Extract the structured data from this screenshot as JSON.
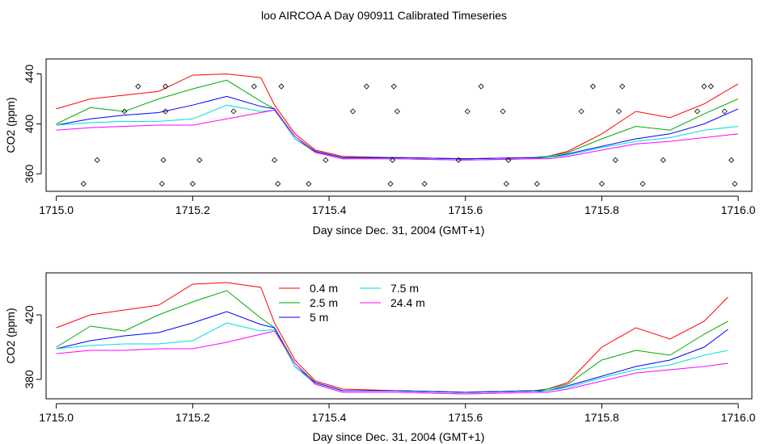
{
  "figure_title": "loo AIRCOA A  Day 090911  Calibrated Timeseries",
  "chart_data": [
    {
      "type": "line",
      "xlabel": "Day since Dec. 31, 2004 (GMT+1)",
      "ylabel": "CO2 (ppm)",
      "xlim": [
        1714.985,
        1716.02
      ],
      "ylim": [
        346,
        452
      ],
      "x_ticks": [
        1715.0,
        1715.2,
        1715.4,
        1715.6,
        1715.8,
        1716.0
      ],
      "x_tick_labels": [
        "1715.0",
        "1715.2",
        "1715.4",
        "1715.6",
        "1715.8",
        "1716.0"
      ],
      "y_ticks": [
        360,
        400,
        440
      ],
      "y_tick_labels": [
        "360",
        "400",
        "440"
      ],
      "grid": false,
      "legend": null,
      "series": [
        {
          "color": "#ff0000",
          "x": [
            1715.0,
            1715.05,
            1715.1,
            1715.15,
            1715.2,
            1715.25,
            1715.3,
            1715.32,
            1715.35,
            1715.38,
            1715.42,
            1715.5,
            1715.6,
            1715.7,
            1715.72,
            1715.75,
            1715.8,
            1715.85,
            1715.9,
            1715.95,
            1716.0
          ],
          "y": [
            412,
            420,
            423,
            426,
            439,
            440,
            437,
            415,
            392,
            379,
            374,
            373,
            372,
            373,
            374,
            378,
            392,
            410,
            405,
            416,
            432
          ]
        },
        {
          "color": "#00aa00",
          "x": [
            1715.0,
            1715.05,
            1715.1,
            1715.15,
            1715.2,
            1715.25,
            1715.3,
            1715.32,
            1715.35,
            1715.38,
            1715.42,
            1715.5,
            1715.6,
            1715.7,
            1715.72,
            1715.75,
            1715.8,
            1715.85,
            1715.9,
            1715.95,
            1716.0
          ],
          "y": [
            400,
            413,
            410,
            420,
            428,
            435,
            418,
            412,
            390,
            378,
            373,
            373,
            372,
            373,
            374,
            377,
            388,
            398,
            395,
            408,
            420
          ]
        },
        {
          "color": "#0000ff",
          "x": [
            1715.0,
            1715.05,
            1715.1,
            1715.15,
            1715.2,
            1715.25,
            1715.3,
            1715.32,
            1715.35,
            1715.38,
            1715.42,
            1715.5,
            1715.6,
            1715.7,
            1715.72,
            1715.75,
            1715.8,
            1715.85,
            1715.9,
            1715.95,
            1716.0
          ],
          "y": [
            399,
            404,
            407,
            409,
            415,
            422,
            414,
            412,
            388,
            378,
            373,
            373,
            372,
            373,
            373,
            376,
            382,
            388,
            392,
            400,
            412
          ]
        },
        {
          "color": "#00dddd",
          "x": [
            1715.0,
            1715.05,
            1715.1,
            1715.15,
            1715.2,
            1715.25,
            1715.3,
            1715.32,
            1715.35,
            1715.38,
            1715.42,
            1715.5,
            1715.6,
            1715.7,
            1715.72,
            1715.75,
            1715.8,
            1715.85,
            1715.9,
            1715.95,
            1716.0
          ],
          "y": [
            399,
            401,
            402,
            402,
            404,
            415,
            410,
            411,
            388,
            377,
            372,
            372,
            371,
            372,
            373,
            375,
            381,
            386,
            389,
            395,
            398
          ]
        },
        {
          "color": "#ff00ff",
          "x": [
            1715.0,
            1715.05,
            1715.1,
            1715.15,
            1715.2,
            1715.25,
            1715.3,
            1715.32,
            1715.35,
            1715.38,
            1715.42,
            1715.5,
            1715.6,
            1715.7,
            1715.72,
            1715.75,
            1715.8,
            1715.85,
            1715.9,
            1715.95,
            1716.0
          ],
          "y": [
            395,
            397,
            398,
            399,
            399,
            404,
            409,
            411,
            390,
            377,
            372,
            372,
            371,
            372,
            372,
            374,
            379,
            384,
            386,
            389,
            392
          ]
        }
      ],
      "scatter": {
        "marker": "open-diamond",
        "x": [
          1715.04,
          1715.06,
          1715.1,
          1715.12,
          1715.155,
          1715.157,
          1715.16,
          1715.16,
          1715.2,
          1715.21,
          1715.26,
          1715.29,
          1715.32,
          1715.325,
          1715.33,
          1715.37,
          1715.395,
          1715.435,
          1715.455,
          1715.49,
          1715.493,
          1715.495,
          1715.5,
          1715.54,
          1715.59,
          1715.603,
          1715.623,
          1715.655,
          1715.66,
          1715.663,
          1715.705,
          1715.77,
          1715.787,
          1715.8,
          1715.82,
          1715.825,
          1715.83,
          1715.86,
          1715.89,
          1715.94,
          1715.95,
          1715.96,
          1715.98,
          1715.99,
          1715.995
        ],
        "y": [
          352,
          371,
          410,
          430,
          352,
          371,
          410,
          430,
          352,
          371,
          410,
          430,
          371,
          352,
          430,
          352,
          371,
          410,
          430,
          352,
          371,
          430,
          410,
          352,
          371,
          410,
          430,
          410,
          352,
          371,
          352,
          410,
          430,
          352,
          371,
          410,
          430,
          352,
          371,
          410,
          430,
          430,
          410,
          371,
          352
        ]
      }
    },
    {
      "type": "line",
      "xlabel": "Day since Dec. 31, 2004 (GMT+1)",
      "ylabel": "CO2 (ppm)",
      "xlim": [
        1714.985,
        1716.02
      ],
      "ylim": [
        368,
        446
      ],
      "x_ticks": [
        1715.0,
        1715.2,
        1715.4,
        1715.6,
        1715.8,
        1716.0
      ],
      "x_tick_labels": [
        "1715.0",
        "1715.2",
        "1715.4",
        "1715.6",
        "1715.8",
        "1716.0"
      ],
      "y_ticks": [
        380,
        420
      ],
      "y_tick_labels": [
        "380",
        "420"
      ],
      "grid": false,
      "legend": "top-center",
      "series": [
        {
          "name": "0.4 m",
          "color": "#ff0000",
          "x": [
            1715.0,
            1715.05,
            1715.1,
            1715.15,
            1715.2,
            1715.25,
            1715.3,
            1715.32,
            1715.35,
            1715.38,
            1715.42,
            1715.5,
            1715.6,
            1715.7,
            1715.72,
            1715.75,
            1715.8,
            1715.85,
            1715.9,
            1715.95,
            1715.985
          ],
          "y": [
            412,
            420,
            423,
            426,
            439,
            440,
            437,
            415,
            392,
            379,
            374,
            373,
            372,
            373,
            374,
            378,
            400,
            412,
            405,
            416,
            431
          ]
        },
        {
          "name": "2.5 m",
          "color": "#00aa00",
          "x": [
            1715.0,
            1715.05,
            1715.1,
            1715.15,
            1715.2,
            1715.25,
            1715.3,
            1715.32,
            1715.35,
            1715.38,
            1715.42,
            1715.5,
            1715.6,
            1715.7,
            1715.72,
            1715.75,
            1715.8,
            1715.85,
            1715.9,
            1715.95,
            1715.985
          ],
          "y": [
            400,
            413,
            410,
            420,
            428,
            435,
            418,
            412,
            390,
            378,
            373,
            373,
            372,
            373,
            374,
            377,
            392,
            398,
            395,
            408,
            416
          ]
        },
        {
          "name": "5 m",
          "color": "#0000ff",
          "x": [
            1715.0,
            1715.05,
            1715.1,
            1715.15,
            1715.2,
            1715.25,
            1715.3,
            1715.32,
            1715.35,
            1715.38,
            1715.42,
            1715.5,
            1715.6,
            1715.7,
            1715.72,
            1715.75,
            1715.8,
            1715.85,
            1715.9,
            1715.95,
            1715.985
          ],
          "y": [
            399,
            404,
            407,
            409,
            415,
            422,
            414,
            412,
            388,
            378,
            373,
            373,
            372,
            373,
            373,
            376,
            382,
            388,
            392,
            400,
            411
          ]
        },
        {
          "name": "7.5 m",
          "color": "#00dddd",
          "x": [
            1715.0,
            1715.05,
            1715.1,
            1715.15,
            1715.2,
            1715.25,
            1715.3,
            1715.32,
            1715.35,
            1715.38,
            1715.42,
            1715.5,
            1715.6,
            1715.7,
            1715.72,
            1715.75,
            1715.8,
            1715.85,
            1715.9,
            1715.95,
            1715.985
          ],
          "y": [
            399,
            401,
            402,
            402,
            404,
            415,
            410,
            411,
            388,
            377,
            372,
            372,
            371,
            372,
            373,
            375,
            381,
            386,
            389,
            395,
            398
          ]
        },
        {
          "name": "24.4 m",
          "color": "#ff00ff",
          "x": [
            1715.0,
            1715.05,
            1715.1,
            1715.15,
            1715.2,
            1715.25,
            1715.3,
            1715.32,
            1715.35,
            1715.38,
            1715.42,
            1715.5,
            1715.6,
            1715.7,
            1715.72,
            1715.75,
            1715.8,
            1715.85,
            1715.9,
            1715.95,
            1715.985
          ],
          "y": [
            396,
            398,
            398,
            399,
            399,
            403,
            408,
            410,
            390,
            377,
            372,
            372,
            371,
            372,
            372,
            374,
            379,
            384,
            386,
            388,
            390
          ]
        }
      ]
    }
  ]
}
